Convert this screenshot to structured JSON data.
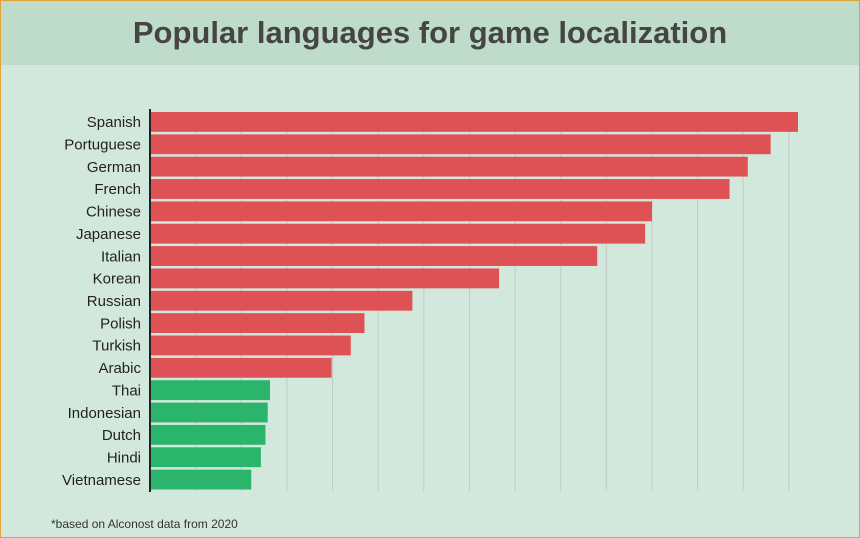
{
  "title": "Popular languages for game localization",
  "footnote": "*based on Alconost data from 2020",
  "colors": {
    "background": "#d3e8dc",
    "header": "#bfdccb",
    "border": "#e2a23a",
    "bar_primary": "#de5256",
    "bar_secondary": "#2bb56c",
    "grid": "#c4c9c5",
    "axis": "#222222"
  },
  "chart_data": {
    "type": "bar",
    "orientation": "horizontal",
    "title": "Popular languages for game localization",
    "categories": [
      "Spanish",
      "Portuguese",
      "German",
      "French",
      "Chinese",
      "Japanese",
      "Italian",
      "Korean",
      "Russian",
      "Polish",
      "Turkish",
      "Arabic",
      "Thai",
      "Indonesian",
      "Dutch",
      "Hindi",
      "Vietnamese"
    ],
    "values": [
      14.2,
      13.6,
      13.1,
      12.7,
      11.0,
      10.85,
      9.8,
      7.65,
      5.75,
      4.7,
      4.4,
      3.98,
      2.63,
      2.58,
      2.53,
      2.43,
      2.22
    ],
    "bar_colors": [
      "primary",
      "primary",
      "primary",
      "primary",
      "primary",
      "primary",
      "primary",
      "primary",
      "primary",
      "primary",
      "primary",
      "primary",
      "secondary",
      "secondary",
      "secondary",
      "secondary",
      "secondary"
    ],
    "xlim": [
      0,
      14.2
    ],
    "grid": true,
    "grid_step": 1,
    "show_value_axis_labels": false,
    "legend": "none"
  }
}
